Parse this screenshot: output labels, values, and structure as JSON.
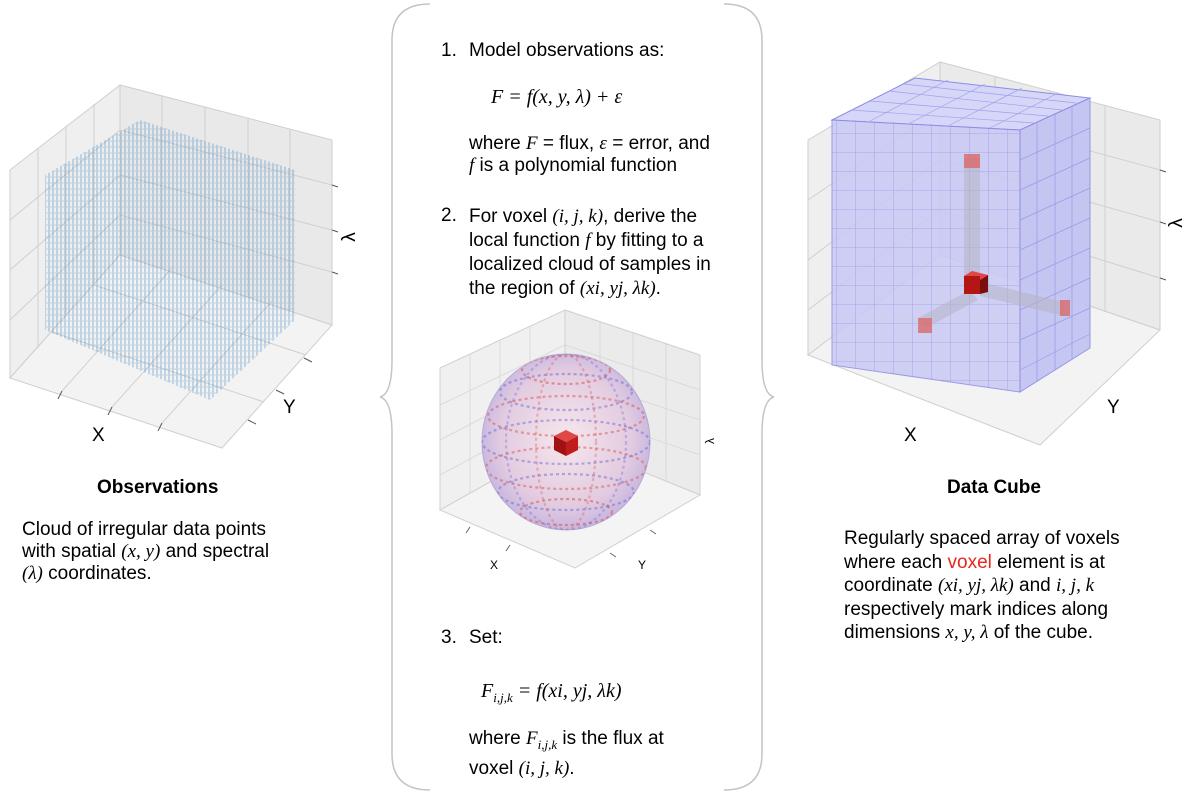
{
  "left": {
    "axis_x": "X",
    "axis_y": "Y",
    "axis_lambda": "λ",
    "title": "Observations",
    "desc_1": "Cloud of irregular data points",
    "desc_2a": "with spatial ",
    "desc_2m": "(x, y)",
    "desc_2b": " and spectral",
    "desc_3m": "(λ)",
    "desc_3b": " coordinates."
  },
  "center": {
    "step1_num": "1.",
    "step1_text": "Model observations as:",
    "eq1": "F = f(x, y, λ) +  ε",
    "where1_a": "where ",
    "where1_F": "F",
    "where1_b": " = flux, ",
    "where1_eps": "ε",
    "where1_c": " = error, and",
    "where1_f": "f",
    "where1_d": " is a polynomial function",
    "step2_num": "2.",
    "step2_l1a": "For voxel ",
    "step2_l1m": "(i, j, k)",
    "step2_l1b": ", derive the",
    "step2_l2a": "local function ",
    "step2_l2m": "f",
    "step2_l2b": " by fitting to a",
    "step2_l3": "localized cloud of samples in",
    "step2_l4a": "the region of ",
    "step2_l4m": "(xi, yj, λk)",
    "step2_l4b": ".",
    "sphere_x": "X",
    "sphere_y": "Y",
    "sphere_lambda": "λ",
    "step3_num": "3.",
    "step3_text": "Set:",
    "eq3_lhs": "F",
    "eq3_sub": "i,j,k",
    "eq3_rhs": " = f(xi, yj, λk)",
    "where3_a": "where ",
    "where3_F": "F",
    "where3_sub": "i,j,k",
    "where3_b": " is the flux at",
    "where3_c": "voxel ",
    "where3_m": "(i, j, k)",
    "where3_d": "."
  },
  "right": {
    "axis_x": "X",
    "axis_y": "Y",
    "axis_lambda": "λ",
    "title": "Data Cube",
    "d1": "Regularly spaced array of voxels",
    "d2a": "where each ",
    "d2red": "voxel",
    "d2b": " element is at",
    "d3a": "coordinate ",
    "d3m1": "(xi, yj, λk)",
    "d3b": " and ",
    "d3m2": "i, j, k",
    "d4": "respectively mark indices along",
    "d5a": "dimensions ",
    "d5m": "x, y, λ",
    "d5b": " of the cube."
  },
  "colors": {
    "cloud": "#1f6fb4",
    "cube_fill": "#c9c9f5",
    "cube_grid": "#8c8ce6",
    "voxel_red": "#c81e1e",
    "highlight_red": "#e8261c"
  }
}
